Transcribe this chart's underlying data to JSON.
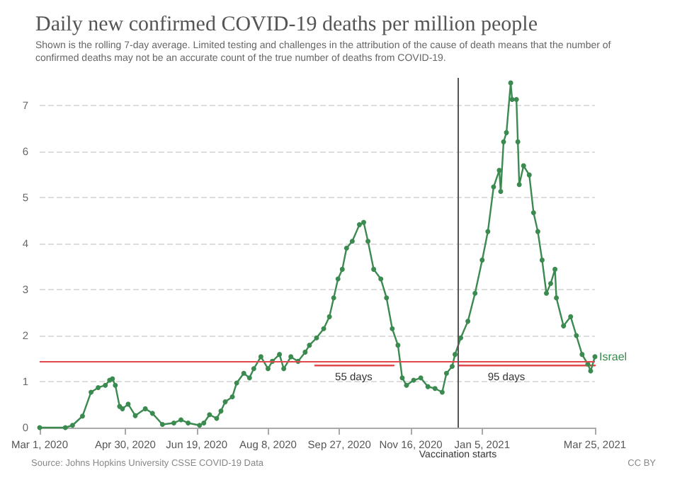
{
  "chart_data": {
    "type": "line",
    "title": "Daily new confirmed COVID-19 deaths per million people",
    "subtitle": "Shown is the rolling 7-day average. Limited testing and challenges in the attribution of the cause of death means that the number of confirmed deaths may not be an accurate count of the true number of deaths from COVID-19.",
    "xlim": [
      "2020-03-01",
      "2021-03-25"
    ],
    "xticks": [
      {
        "value": "2020-03-01",
        "label": "Mar 1, 2020"
      },
      {
        "value": "2020-04-30",
        "label": "Apr 30, 2020"
      },
      {
        "value": "2020-06-19",
        "label": "Jun 19, 2020"
      },
      {
        "value": "2020-08-08",
        "label": "Aug 8, 2020"
      },
      {
        "value": "2020-09-27",
        "label": "Sep 27, 2020"
      },
      {
        "value": "2020-11-16",
        "label": "Nov 16, 2020"
      },
      {
        "value": "2021-01-05",
        "label": "Jan 5, 2021"
      },
      {
        "value": "2021-03-25",
        "label": "Mar 25, 2021"
      }
    ],
    "ylim": [
      0,
      7.6
    ],
    "yticks": [
      0,
      1,
      2,
      3,
      4,
      5,
      6,
      7
    ],
    "grid": "y",
    "legend": false,
    "marker": "circle",
    "series": [
      {
        "name": "Israel",
        "color": "#3b8a50",
        "x": [
          "2020-03-01",
          "2020-03-19",
          "2020-03-24",
          "2020-03-31",
          "2020-04-06",
          "2020-04-11",
          "2020-04-16",
          "2020-04-19",
          "2020-04-21",
          "2020-04-23",
          "2020-04-26",
          "2020-04-28",
          "2020-05-02",
          "2020-05-07",
          "2020-05-14",
          "2020-05-19",
          "2020-05-26",
          "2020-06-03",
          "2020-06-08",
          "2020-06-13",
          "2020-06-21",
          "2020-06-24",
          "2020-06-28",
          "2020-07-03",
          "2020-07-06",
          "2020-07-09",
          "2020-07-14",
          "2020-07-17",
          "2020-07-22",
          "2020-07-26",
          "2020-07-29",
          "2020-08-03",
          "2020-08-08",
          "2020-08-11",
          "2020-08-16",
          "2020-08-19",
          "2020-08-24",
          "2020-08-29",
          "2020-09-03",
          "2020-09-06",
          "2020-09-11",
          "2020-09-16",
          "2020-09-20",
          "2020-09-23",
          "2020-09-26",
          "2020-09-29",
          "2020-10-02",
          "2020-10-06",
          "2020-10-11",
          "2020-10-14",
          "2020-10-17",
          "2020-10-21",
          "2020-10-26",
          "2020-10-30",
          "2020-11-03",
          "2020-11-07",
          "2020-11-10",
          "2020-11-13",
          "2020-11-18",
          "2020-11-23",
          "2020-11-28",
          "2020-12-03",
          "2020-12-08",
          "2020-12-11",
          "2020-12-15",
          "2020-12-17",
          "2020-12-21",
          "2020-12-26",
          "2020-12-31",
          "2021-01-05",
          "2021-01-09",
          "2021-01-13",
          "2021-01-17",
          "2021-01-18",
          "2021-01-20",
          "2021-01-22",
          "2021-01-25",
          "2021-01-26",
          "2021-01-29",
          "2021-01-30",
          "2021-01-31",
          "2021-02-03",
          "2021-02-07",
          "2021-02-10",
          "2021-02-13",
          "2021-02-16",
          "2021-02-19",
          "2021-02-22",
          "2021-02-25",
          "2021-02-26",
          "2021-03-03",
          "2021-03-08",
          "2021-03-12",
          "2021-03-16",
          "2021-03-20",
          "2021-03-22",
          "2021-03-25"
        ],
        "values": [
          0,
          0,
          0.05,
          0.25,
          0.77,
          0.87,
          0.92,
          1.03,
          1.06,
          0.92,
          0.46,
          0.41,
          0.51,
          0.26,
          0.41,
          0.31,
          0.07,
          0.1,
          0.17,
          0.1,
          0.05,
          0.1,
          0.28,
          0.2,
          0.36,
          0.56,
          0.67,
          0.97,
          1.18,
          1.08,
          1.28,
          1.54,
          1.28,
          1.44,
          1.59,
          1.28,
          1.54,
          1.44,
          1.64,
          1.79,
          1.95,
          2.15,
          2.41,
          2.82,
          3.23,
          3.44,
          3.9,
          4.05,
          4.41,
          4.46,
          4.05,
          3.44,
          3.23,
          2.82,
          2.15,
          1.79,
          1.08,
          0.92,
          1.03,
          1.08,
          0.89,
          0.85,
          0.77,
          1.18,
          1.33,
          1.59,
          1.95,
          2.31,
          2.92,
          3.64,
          4.26,
          5.23,
          5.59,
          5.13,
          6.21,
          6.41,
          7.49,
          7.13,
          7.13,
          6.21,
          5.28,
          5.69,
          5.49,
          4.67,
          4.26,
          3.64,
          2.92,
          3.13,
          3.44,
          2.82,
          2.21,
          2.41,
          2.0,
          1.59,
          1.38,
          1.23,
          1.54
        ]
      },
      {
        "color": "#e0484d",
        "marker": "none",
        "x": [
          "2020-09-10",
          "2020-11-04"
        ],
        "values": [
          1.35,
          1.35
        ]
      },
      {
        "color": "#e0484d",
        "marker": "none",
        "x": [
          "2020-12-20",
          "2021-03-25"
        ],
        "values": [
          1.35,
          1.35
        ]
      }
    ],
    "ref_lines": [
      {
        "axis": "y",
        "value": 1.44,
        "label": null,
        "color": "#e0484d"
      },
      {
        "axis": "x",
        "value": "2020-12-19",
        "label": "Vaccination starts",
        "color": "#555555"
      }
    ],
    "annotations": [
      {
        "text": "55 days",
        "x": "2020-10-07",
        "y": 1.35
      },
      {
        "text": "95 days",
        "x": "2021-01-22",
        "y": 1.35
      },
      "Source: Johns Hopkins University CSSE COVID-19 Data",
      "CC BY"
    ]
  }
}
